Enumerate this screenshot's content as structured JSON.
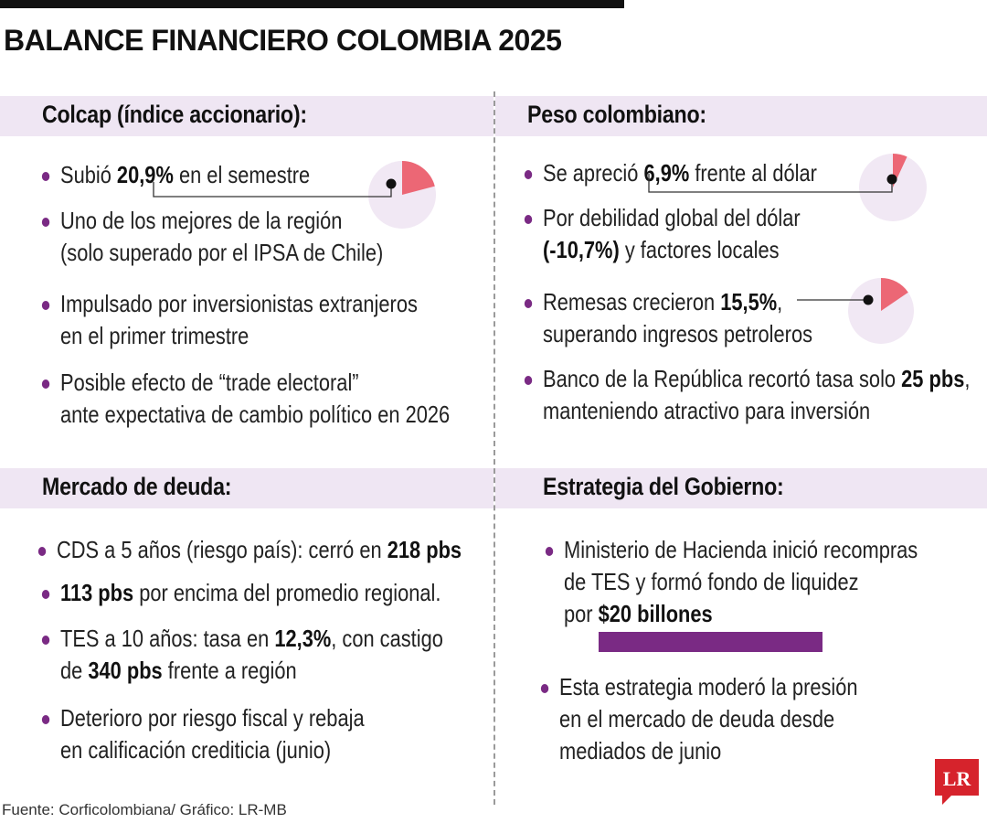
{
  "title": "BALANCE FINANCIERO COLOMBIA  2025",
  "sections": {
    "colcap": {
      "label": "Colcap (índice accionario):",
      "items": [
        {
          "pre": "Subió ",
          "b1": "20,9%",
          "mid": " en el semestre",
          "l2": ""
        },
        {
          "pre": "Uno de los mejores de la región",
          "b1": "",
          "mid": "",
          "l2": "(solo superado por el IPSA de Chile)"
        },
        {
          "pre": "Impulsado por inversionistas extranjeros",
          "b1": "",
          "mid": "",
          "l2": "en el primer trimestre"
        },
        {
          "pre": "Posible efecto de “trade electoral”",
          "b1": "",
          "mid": "",
          "l2": "ante expectativa de cambio político en 2026"
        }
      ]
    },
    "peso": {
      "label": "Peso colombiano:",
      "items": [
        {
          "pre": "Se apreció ",
          "b1": "6,9%",
          "mid": " frente al dólar",
          "l2pre": "",
          "l2b": "",
          "l2post": ""
        },
        {
          "pre": "Por debilidad global del dólar",
          "b1": "",
          "mid": "",
          "l2pre": "",
          "l2b": "(-10,7%)",
          "l2post": " y factores locales"
        },
        {
          "pre": "Remesas crecieron ",
          "b1": "15,5%",
          "mid": ",",
          "l2pre": "superando ingresos petroleros",
          "l2b": "",
          "l2post": ""
        },
        {
          "pre": "Banco de la República recortó tasa solo ",
          "b1": "25 pbs",
          "mid": ",",
          "l2pre": "manteniendo atractivo para inversión",
          "l2b": "",
          "l2post": ""
        }
      ]
    },
    "deuda": {
      "label": "Mercado de deuda:",
      "items": [
        {
          "pre": "CDS a 5 años (riesgo país): cerró en ",
          "b1": "218 pbs",
          "mid": "",
          "l2pre": "",
          "l2b": "",
          "l2post": ""
        },
        {
          "pre": "",
          "b1": "113 pbs",
          "mid": " por encima del promedio regional.",
          "l2pre": "",
          "l2b": "",
          "l2post": ""
        },
        {
          "pre": "TES a 10 años: tasa en ",
          "b1": "12,3%",
          "mid": ", con castigo",
          "l2pre": "de ",
          "l2b": "340 pbs",
          "l2post": " frente a región"
        },
        {
          "pre": "Deterioro por riesgo fiscal y rebaja",
          "b1": "",
          "mid": "",
          "l2pre": "en calificación crediticia (junio)",
          "l2b": "",
          "l2post": ""
        }
      ]
    },
    "gobierno": {
      "label": "Estrategia del Gobierno:",
      "items": [
        {
          "l1": "Ministerio de Hacienda inició recompras",
          "l2": "de TES y formó fondo de liquidez",
          "l3pre": "por ",
          "l3b": "$20 billones"
        },
        {
          "l1": "Esta estrategia moderó la presión",
          "l2": "en el mercado de deuda desde",
          "l3pre": "mediados de junio",
          "l3b": ""
        }
      ]
    }
  },
  "pies": [
    {
      "name": "colcap-pie",
      "percent": 20.9
    },
    {
      "name": "peso-pie",
      "percent": 6.9
    },
    {
      "name": "remesas-pie",
      "percent": 15.5
    }
  ],
  "source": "Fuente: Corficolombiana/ Gráfico: LR-MB",
  "logo_text": "LR",
  "colors": {
    "accent": "#7a2a84",
    "band": "#efe6f3",
    "pie_bg": "#f1e8f4",
    "pie_slice": "#ec6775",
    "logo": "#d6232c"
  }
}
